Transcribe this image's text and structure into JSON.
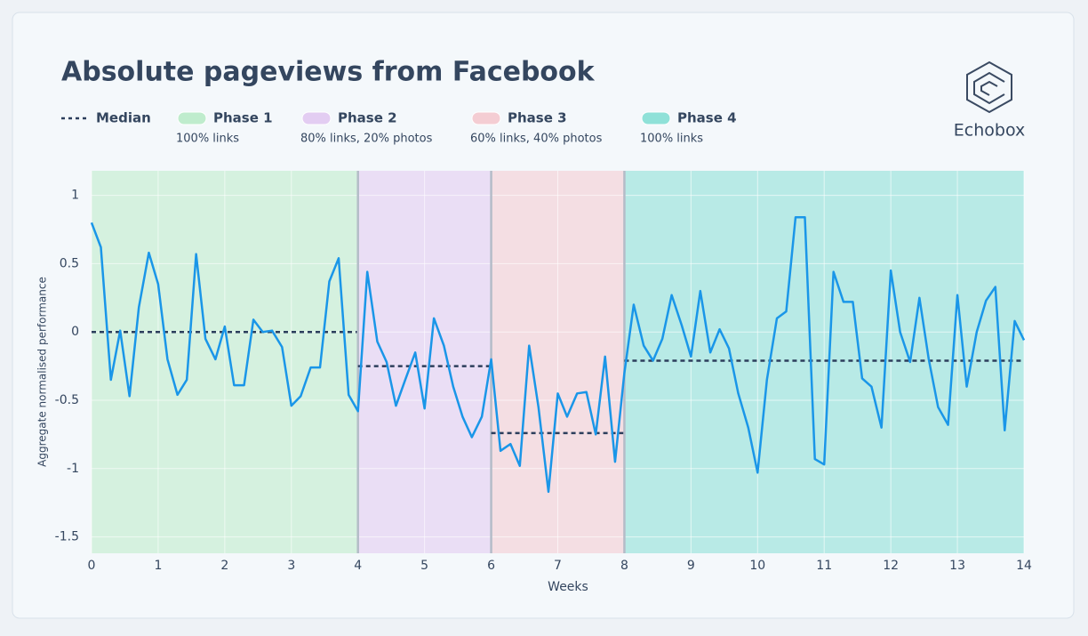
{
  "chart_data": {
    "type": "line",
    "title": "Absolute pageviews from Facebook",
    "brand": "Echobox",
    "x_label": "Weeks",
    "y_label": "Aggregate normalised performance",
    "median_label": "Median",
    "color": "#1a96e8",
    "median_color": "#2c3e5c",
    "grid": true,
    "xlim": [
      0,
      14
    ],
    "xticks": [
      0,
      1,
      2,
      3,
      4,
      5,
      6,
      7,
      8,
      9,
      10,
      11,
      12,
      13,
      14
    ],
    "ylim": [
      -1.62,
      1.18
    ],
    "yticks": [
      1,
      0.5,
      0,
      -0.5,
      -1,
      -1.5
    ],
    "phases": [
      {
        "name": "Phase 1",
        "description": "100% links",
        "color": "#bfeccd",
        "start": 0,
        "end": 4,
        "median": 0
      },
      {
        "name": "Phase 2",
        "description": "80% links, 20% photos",
        "color": "#e3cdf2",
        "start": 4,
        "end": 6,
        "median": -0.25
      },
      {
        "name": "Phase 3",
        "description": "60% links, 40% photos",
        "color": "#f4cdd3",
        "start": 6,
        "end": 8,
        "median": -0.74
      },
      {
        "name": "Phase 4",
        "description": "100% links",
        "color": "#8fe1d8",
        "start": 8,
        "end": 14,
        "median": -0.21
      }
    ],
    "x": [
      0,
      0.14,
      0.29,
      0.43,
      0.57,
      0.71,
      0.86,
      1,
      1.14,
      1.29,
      1.43,
      1.57,
      1.71,
      1.86,
      2,
      2.14,
      2.29,
      2.43,
      2.57,
      2.71,
      2.86,
      3,
      3.14,
      3.29,
      3.43,
      3.57,
      3.71,
      3.86,
      4,
      4.14,
      4.29,
      4.43,
      4.57,
      4.71,
      4.86,
      5,
      5.14,
      5.29,
      5.43,
      5.57,
      5.71,
      5.86,
      6,
      6.14,
      6.29,
      6.43,
      6.57,
      6.71,
      6.86,
      7,
      7.14,
      7.29,
      7.43,
      7.57,
      7.71,
      7.86,
      8,
      8.14,
      8.29,
      8.43,
      8.57,
      8.71,
      8.86,
      9,
      9.14,
      9.29,
      9.43,
      9.57,
      9.71,
      9.86,
      10,
      10.14,
      10.29,
      10.43,
      10.57,
      10.71,
      10.86,
      11,
      11.14,
      11.29,
      11.43,
      11.57,
      11.71,
      11.86,
      12,
      12.14,
      12.29,
      12.43,
      12.57,
      12.71,
      12.86,
      13,
      13.14,
      13.29,
      13.43,
      13.57,
      13.71,
      13.86,
      14
    ],
    "values": [
      0.8,
      0.62,
      -0.35,
      0.01,
      -0.47,
      0.18,
      0.58,
      0.35,
      -0.2,
      -0.46,
      -0.35,
      0.57,
      -0.05,
      -0.2,
      0.04,
      -0.39,
      -0.39,
      0.09,
      0.0,
      0.01,
      -0.11,
      -0.54,
      -0.47,
      -0.26,
      -0.26,
      0.37,
      0.54,
      -0.46,
      -0.58,
      0.44,
      -0.07,
      -0.22,
      -0.54,
      -0.35,
      -0.15,
      -0.56,
      0.1,
      -0.1,
      -0.4,
      -0.62,
      -0.77,
      -0.62,
      -0.2,
      -0.87,
      -0.82,
      -0.98,
      -0.1,
      -0.55,
      -1.17,
      -0.45,
      -0.62,
      -0.45,
      -0.44,
      -0.75,
      -0.18,
      -0.95,
      -0.3,
      0.2,
      -0.1,
      -0.21,
      -0.05,
      0.27,
      0.05,
      -0.18,
      0.3,
      -0.15,
      0.02,
      -0.12,
      -0.45,
      -0.7,
      -1.03,
      -0.35,
      0.1,
      0.15,
      0.84,
      0.84,
      -0.93,
      -0.97,
      0.44,
      0.22,
      0.22,
      -0.34,
      -0.4,
      -0.7,
      0.45,
      0.0,
      -0.22,
      0.25,
      -0.2,
      -0.55,
      -0.68,
      0.27,
      -0.4,
      0.0,
      0.23,
      0.33,
      -0.72,
      0.08,
      -0.06
    ]
  }
}
